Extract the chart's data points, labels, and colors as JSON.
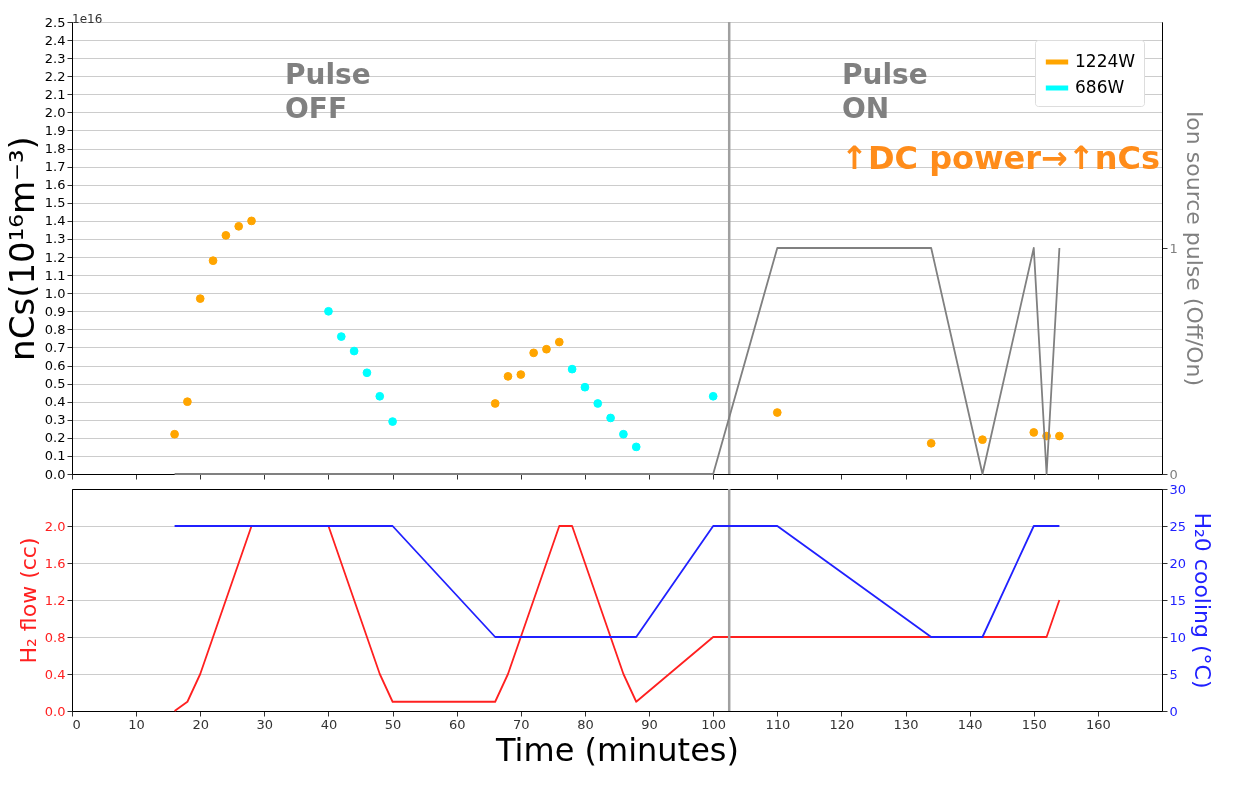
{
  "chart_data": [
    {
      "type": "scatter",
      "ylabel": "nCs(10¹⁶m⁻³)",
      "y2label": "Ion source pulse (Off/On)",
      "xlim": [
        0,
        170
      ],
      "xticks": [
        0,
        10,
        20,
        30,
        40,
        50,
        60,
        70,
        80,
        90,
        100,
        110,
        120,
        130,
        140,
        150,
        160
      ],
      "ylim": [
        0,
        2.5
      ],
      "yticks": [
        {
          "value": 0,
          "label": "0.0"
        },
        0.1,
        0.2,
        0.3,
        0.4,
        0.5,
        0.6,
        0.7,
        0.8,
        0.9,
        {
          "value": 1,
          "label": "1.0"
        },
        1.1,
        1.2,
        1.3,
        1.4,
        1.5,
        1.6,
        1.7,
        1.8,
        1.9,
        {
          "value": 2,
          "label": "2.0"
        },
        2.1,
        2.2,
        2.3,
        2.4,
        2.5
      ],
      "y2lim": [
        0,
        2
      ],
      "y2ticks": [
        0,
        1
      ],
      "tick_labels": "y",
      "grid": "y",
      "legend": "top right",
      "marker": "circle",
      "series": [
        {
          "name": "1224W",
          "color": "#ffa500",
          "x": [
            16,
            18,
            20,
            22,
            24,
            26,
            28,
            66,
            68,
            70,
            72,
            74,
            76,
            110,
            134,
            142,
            150,
            152,
            154
          ],
          "values": [
            0.22,
            0.4,
            0.97,
            1.18,
            1.32,
            1.37,
            1.4,
            0.39,
            0.54,
            0.55,
            0.67,
            0.69,
            0.73,
            0.34,
            0.17,
            0.19,
            0.23,
            0.21,
            0.21
          ]
        },
        {
          "name": "686W",
          "color": "#00ffff",
          "x": [
            40,
            42,
            44,
            46,
            48,
            50,
            78,
            80,
            82,
            84,
            86,
            88,
            100
          ],
          "values": [
            0.9,
            0.76,
            0.68,
            0.56,
            0.43,
            0.29,
            0.58,
            0.48,
            0.39,
            0.31,
            0.22,
            0.15,
            0.43
          ]
        },
        {
          "type": "line",
          "axis": "y2",
          "marker": "none",
          "color": "#808080",
          "x": [
            16,
            100,
            110,
            134,
            142,
            150,
            152,
            154
          ],
          "values": [
            0,
            0,
            1,
            1,
            0,
            1,
            0,
            1
          ]
        }
      ],
      "ref_lines": [
        {
          "axis": "x",
          "value": 102.5,
          "color": "#a0a0a0"
        }
      ],
      "annotations": [
        "1e16",
        "Pulse\nOFF",
        "Pulse\nON",
        "↑DC power→↑nCs"
      ]
    },
    {
      "type": "line",
      "xlabel": "Time (minutes)",
      "ylabel": "H₂ flow (cc)",
      "y2label": "H₂0 cooling (°C)",
      "xlim": [
        0,
        170
      ],
      "xticks": [
        0,
        10,
        20,
        30,
        40,
        50,
        60,
        70,
        80,
        90,
        100,
        110,
        120,
        130,
        140,
        150,
        160
      ],
      "ylim": [
        0,
        2.4
      ],
      "yticks": [
        {
          "value": 0,
          "label": "0.0"
        },
        0.4,
        0.8,
        1.2,
        1.6,
        {
          "value": 2,
          "label": "2.0"
        }
      ],
      "y2lim": [
        0,
        30
      ],
      "y2ticks": [
        0,
        5,
        10,
        15,
        20,
        25,
        30
      ],
      "grid": "y",
      "line_style": "solid",
      "series": [
        {
          "color": "#ff2020",
          "x": [
            16,
            18,
            20,
            28,
            40,
            48,
            50,
            66,
            68,
            76,
            78,
            86,
            88,
            100,
            152,
            154
          ],
          "values": [
            0,
            0.1,
            0.4,
            2.0,
            2.0,
            0.4,
            0.1,
            0.1,
            0.4,
            2.0,
            2.0,
            0.4,
            0.1,
            0.8,
            0.8,
            1.2
          ]
        },
        {
          "color": "#2020ff",
          "axis": "y2",
          "x": [
            16,
            50,
            66,
            88,
            100,
            110,
            134,
            142,
            150,
            154
          ],
          "values": [
            25,
            25,
            10,
            10,
            25,
            25,
            10,
            10,
            25,
            25
          ]
        }
      ],
      "ref_lines": [
        {
          "axis": "x",
          "value": 102.5,
          "color": "#a0a0a0"
        }
      ]
    }
  ]
}
